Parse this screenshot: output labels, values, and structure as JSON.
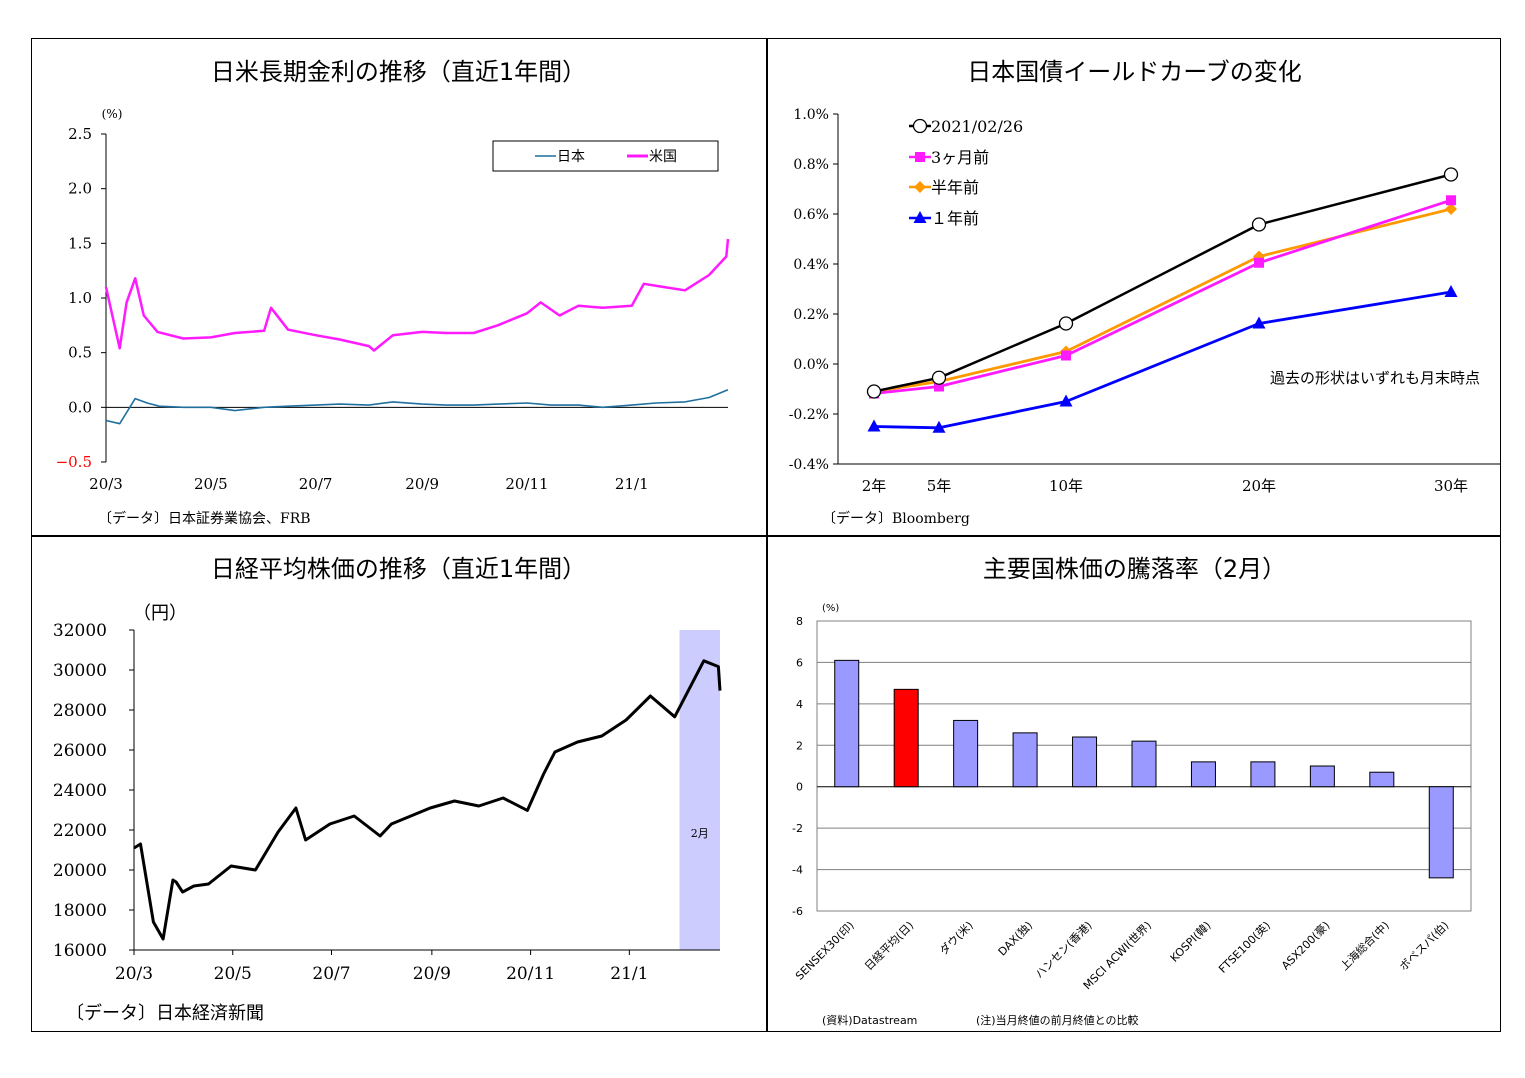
{
  "chart_data": [
    {
      "type": "line",
      "title": "日米長期金利の推移（直近1年間）",
      "ylabel": "(%)",
      "ylim": [
        -0.5,
        2.5
      ],
      "yticks": [
        "2.5",
        "2.0",
        "1.5",
        "1.0",
        "0.5",
        "0.0",
        "−0.5"
      ],
      "xticks": [
        "20/3",
        "20/5",
        "20/7",
        "20/9",
        "20/11",
        "21/1"
      ],
      "legend": [
        "日本",
        "米国"
      ],
      "legend_position": "top-right",
      "colors": {
        "japan": "#1f6f9f",
        "us": "#ff1aff",
        "negative_tick": "#ff0000"
      },
      "series": [
        {
          "name": "米国",
          "x": [
            "20/3/1",
            "20/3/9",
            "20/3/13",
            "20/3/18",
            "20/3/23",
            "20/3/31",
            "20/4/15",
            "20/5/1",
            "20/5/15",
            "20/6/1",
            "20/6/5",
            "20/6/15",
            "20/7/1",
            "20/7/15",
            "20/8/1",
            "20/8/4",
            "20/8/15",
            "20/9/1",
            "20/9/15",
            "20/10/1",
            "20/10/15",
            "20/11/1",
            "20/11/9",
            "20/11/20",
            "20/12/1",
            "20/12/15",
            "21/1/1",
            "21/1/8",
            "21/1/20",
            "21/2/1",
            "21/2/15",
            "21/2/25",
            "21/2/26"
          ],
          "values": [
            1.1,
            0.54,
            0.96,
            1.18,
            0.84,
            0.69,
            0.63,
            0.64,
            0.68,
            0.7,
            0.91,
            0.71,
            0.66,
            0.62,
            0.56,
            0.52,
            0.66,
            0.69,
            0.68,
            0.68,
            0.75,
            0.86,
            0.96,
            0.84,
            0.93,
            0.91,
            0.93,
            1.13,
            1.1,
            1.07,
            1.21,
            1.38,
            1.54
          ]
        },
        {
          "name": "日本",
          "x": [
            "20/3/1",
            "20/3/9",
            "20/3/18",
            "20/3/25",
            "20/4/1",
            "20/4/15",
            "20/5/1",
            "20/5/15",
            "20/6/1",
            "20/6/15",
            "20/7/1",
            "20/7/15",
            "20/8/1",
            "20/8/15",
            "20/9/1",
            "20/9/15",
            "20/10/1",
            "20/10/15",
            "20/11/1",
            "20/11/15",
            "20/12/1",
            "20/12/15",
            "21/1/1",
            "21/1/15",
            "21/2/1",
            "21/2/15",
            "21/2/26"
          ],
          "values": [
            -0.12,
            -0.15,
            0.08,
            0.04,
            0.01,
            0.0,
            0.0,
            -0.03,
            0.0,
            0.01,
            0.02,
            0.03,
            0.02,
            0.05,
            0.03,
            0.02,
            0.02,
            0.03,
            0.04,
            0.02,
            0.02,
            0.0,
            0.02,
            0.04,
            0.05,
            0.09,
            0.16
          ]
        }
      ],
      "source": "〔データ〕日本証券業協会、FRB"
    },
    {
      "type": "line",
      "title": "日本国債イールドカーブの変化",
      "ylim": [
        -0.4,
        1.0
      ],
      "yticks": [
        "1.0%",
        "0.8%",
        "0.6%",
        "0.4%",
        "0.2%",
        "0.0%",
        "-0.2%",
        "-0.4%"
      ],
      "categories": [
        "2年",
        "5年",
        "10年",
        "20年",
        "30年"
      ],
      "maturities_years": [
        2,
        5,
        10,
        20,
        30
      ],
      "legend_position": "top-left",
      "colors": {
        "current": "#000000",
        "3m": "#ff1aff",
        "6m": "#ff9900",
        "1y": "#0000ff"
      },
      "series": [
        {
          "name": "2021/02/26",
          "values": [
            -0.11,
            -0.055,
            0.162,
            0.558,
            0.758
          ]
        },
        {
          "name": "3ヶ月前",
          "values": [
            -0.118,
            -0.09,
            0.034,
            0.405,
            0.655
          ]
        },
        {
          "name": "半年前",
          "values": [
            -0.11,
            -0.07,
            0.05,
            0.43,
            0.62
          ]
        },
        {
          "name": "１年前",
          "values": [
            -0.25,
            -0.255,
            -0.15,
            0.162,
            0.288
          ]
        }
      ],
      "annotation": "過去の形状はいずれも月末時点",
      "source": "〔データ〕Bloomberg"
    },
    {
      "type": "line",
      "title": "日経平均株価の推移（直近1年間）",
      "ylabel": "（円）",
      "ylim": [
        16000,
        32000
      ],
      "yticks": [
        "32000",
        "30000",
        "28000",
        "26000",
        "24000",
        "22000",
        "20000",
        "18000",
        "16000"
      ],
      "xticks": [
        "20/3",
        "20/5",
        "20/7",
        "20/9",
        "20/11",
        "21/1"
      ],
      "highlight_label": "2月",
      "colors": {
        "line": "#000000",
        "highlight": "#ccccff"
      },
      "series": [
        {
          "name": "日経平均",
          "x": [
            "20/3/1",
            "20/3/5",
            "20/3/13",
            "20/3/19",
            "20/3/25",
            "20/3/27",
            "20/3/31",
            "20/4/7",
            "20/4/16",
            "20/4/30",
            "20/5/15",
            "20/5/29",
            "20/6/9",
            "20/6/15",
            "20/6/30",
            "20/7/15",
            "20/7/31",
            "20/8/7",
            "20/8/31",
            "20/9/15",
            "20/9/30",
            "20/10/15",
            "20/10/30",
            "20/11/9",
            "20/11/16",
            "20/11/30",
            "20/12/15",
            "20/12/30",
            "21/1/14",
            "21/1/29",
            "21/2/16",
            "21/2/25",
            "21/2/26"
          ],
          "values": [
            21100,
            21300,
            17400,
            16550,
            19500,
            19400,
            18900,
            19200,
            19300,
            20200,
            20000,
            21900,
            23100,
            21500,
            22300,
            22700,
            21700,
            22300,
            23100,
            23450,
            23200,
            23600,
            22980,
            24800,
            25900,
            26400,
            26700,
            27500,
            28700,
            27660,
            30460,
            30170,
            28970
          ]
        }
      ],
      "source": "〔データ〕日本経済新聞"
    },
    {
      "type": "bar",
      "title": "主要国株価の騰落率（2月）",
      "ylabel": "(%)",
      "ylim": [
        -6,
        8
      ],
      "yticks": [
        "8",
        "6",
        "4",
        "2",
        "0",
        "-2",
        "-4",
        "-6"
      ],
      "categories": [
        "SENSEX30(印)",
        "日経平均(日)",
        "ダウ(米)",
        "DAX(独)",
        "ハンセン(香港)",
        "MSCI ACWI(世界)",
        "KOSPI(韓)",
        "FTSE100(英)",
        "ASX200(豪)",
        "上海総合(中)",
        "ボベスパ(伯)"
      ],
      "values": [
        6.1,
        4.7,
        3.2,
        2.6,
        2.4,
        2.2,
        1.2,
        1.2,
        1.0,
        0.7,
        -4.4
      ],
      "highlight_index": 1,
      "colors": {
        "bar": "#9999ff",
        "highlight": "#ff0000",
        "grid": "#808080"
      },
      "source": "(資料)Datastream",
      "note": "(注)当月終値の前月終値との比較"
    }
  ]
}
